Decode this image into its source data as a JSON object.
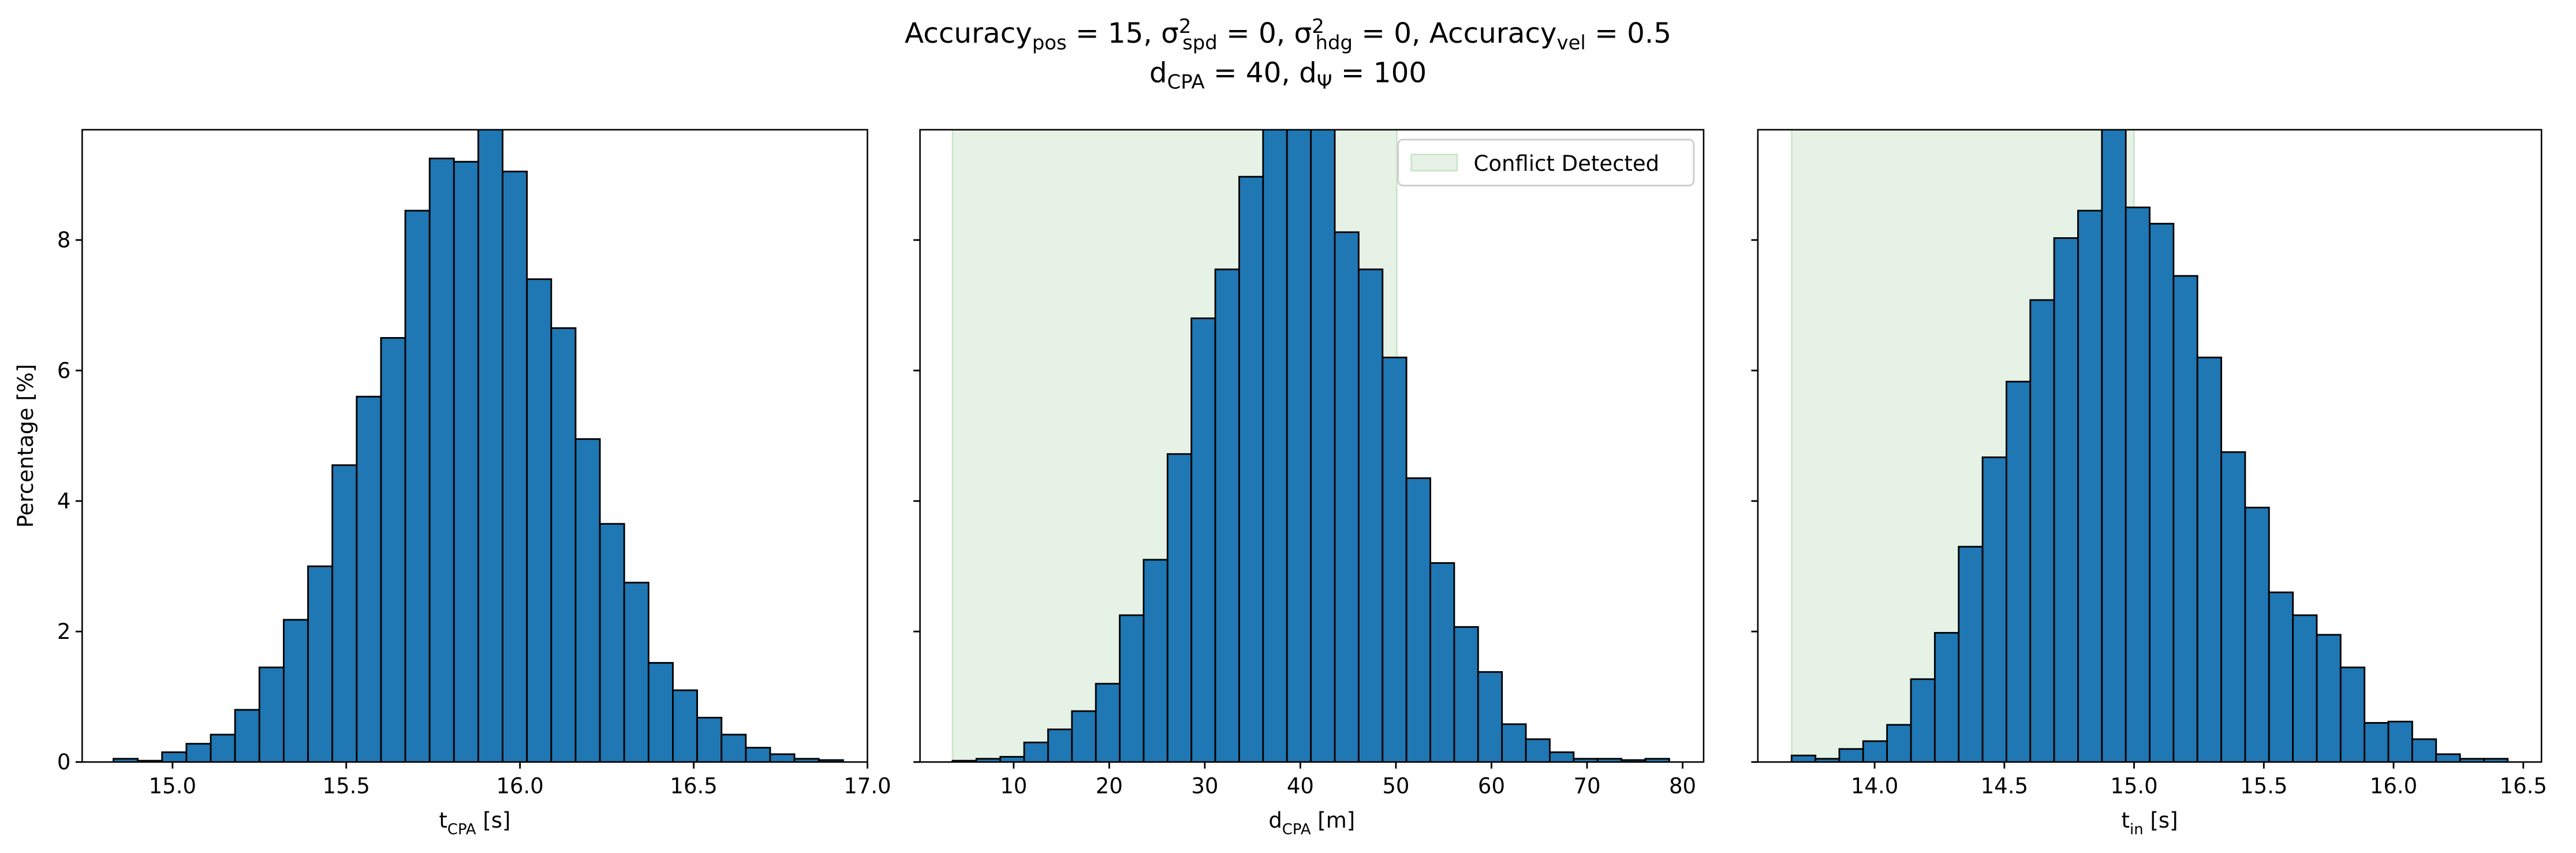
{
  "title": [
    "Accuracy_{pos} = 15, σ^{2}_{spd} = 0, σ^{2}_{hdg} = 0, Accuracy_{vel} = 0.5",
    "d_{CPA} = 40, d_{Ψ} = 100"
  ],
  "chart_data": [
    {
      "type": "histogram",
      "color": "#1f77b4",
      "xlabel": "t_{CPA} [s]",
      "ylabel": "Percentage [%]",
      "bins": [
        14.83,
        14.9,
        14.97,
        15.04,
        15.11,
        15.18,
        15.25,
        15.32,
        15.39,
        15.46,
        15.53,
        15.6,
        15.67,
        15.74,
        15.81,
        15.88,
        15.95,
        16.02,
        16.09,
        16.16,
        16.23,
        16.3,
        16.37,
        16.44,
        16.51,
        16.58,
        16.65,
        16.72,
        16.79,
        16.86,
        16.93
      ],
      "values": [
        0.05,
        0.02,
        0.15,
        0.28,
        0.42,
        0.8,
        1.45,
        2.18,
        3.0,
        4.55,
        5.6,
        6.5,
        8.45,
        9.25,
        9.2,
        10.3,
        9.05,
        7.4,
        6.65,
        4.95,
        3.65,
        2.75,
        1.52,
        1.1,
        0.68,
        0.42,
        0.22,
        0.12,
        0.05,
        0.03
      ],
      "xlim": [
        14.74,
        17.0
      ],
      "xticks": [
        {
          "value": 15.0,
          "label": "15.0"
        },
        {
          "value": 15.5,
          "label": "15.5"
        },
        {
          "value": 16.0,
          "label": "16.0"
        },
        {
          "value": 16.5,
          "label": "16.5"
        },
        {
          "value": 17.0,
          "label": "17.0"
        }
      ],
      "ylim": [
        0,
        9.69
      ],
      "yticks": [
        0,
        2,
        4,
        6,
        8
      ]
    },
    {
      "type": "histogram",
      "color": "#1f77b4",
      "xlabel": "d_{CPA} [m]",
      "bins": [
        3.6,
        6.1,
        8.6,
        11.1,
        13.6,
        16.1,
        18.6,
        21.1,
        23.6,
        26.1,
        28.6,
        31.1,
        33.6,
        36.1,
        38.6,
        41.1,
        43.6,
        46.1,
        48.6,
        51.1,
        53.6,
        56.1,
        58.6,
        61.1,
        63.6,
        66.1,
        68.6,
        71.1,
        73.6,
        76.1,
        78.6
      ],
      "values": [
        0.02,
        0.05,
        0.08,
        0.3,
        0.5,
        0.78,
        1.2,
        2.25,
        3.1,
        4.72,
        6.8,
        7.55,
        8.97,
        10.5,
        11.0,
        10.2,
        8.12,
        7.55,
        6.2,
        4.35,
        3.05,
        2.07,
        1.38,
        0.58,
        0.35,
        0.15,
        0.05,
        0.05,
        0.03,
        0.05
      ],
      "xlim": [
        0.2,
        82.2
      ],
      "xticks": [
        10,
        20,
        30,
        40,
        50,
        60,
        70,
        80
      ],
      "span": [
        3.6,
        50.1
      ],
      "span_color": "#008000",
      "span_label": "Conflict Detected",
      "legend": "upper right"
    },
    {
      "type": "histogram",
      "color": "#1f77b4",
      "xlabel": "t_{in} [s]",
      "bins": [
        13.68,
        13.772,
        13.864,
        13.956,
        14.048,
        14.14,
        14.232,
        14.324,
        14.416,
        14.508,
        14.6,
        14.692,
        14.784,
        14.876,
        14.968,
        15.06,
        15.152,
        15.244,
        15.336,
        15.428,
        15.52,
        15.612,
        15.704,
        15.796,
        15.888,
        15.98,
        16.072,
        16.164,
        16.256,
        16.348,
        16.44
      ],
      "values": [
        0.1,
        0.05,
        0.2,
        0.32,
        0.57,
        1.27,
        1.98,
        3.3,
        4.67,
        5.83,
        7.08,
        8.03,
        8.45,
        10.0,
        8.5,
        8.25,
        7.45,
        6.2,
        4.75,
        3.9,
        2.6,
        2.25,
        1.95,
        1.45,
        0.6,
        0.62,
        0.35,
        0.12,
        0.05,
        0.05
      ],
      "xlim": [
        13.55,
        16.57
      ],
      "xticks": [
        {
          "value": 14.0,
          "label": "14.0"
        },
        {
          "value": 14.5,
          "label": "14.5"
        },
        {
          "value": 15.0,
          "label": "15.0"
        },
        {
          "value": 15.5,
          "label": "15.5"
        },
        {
          "value": 16.0,
          "label": "16.0"
        },
        {
          "value": 16.5,
          "label": "16.5"
        }
      ],
      "span": [
        13.68,
        15.0
      ],
      "span_color": "#008000"
    }
  ]
}
